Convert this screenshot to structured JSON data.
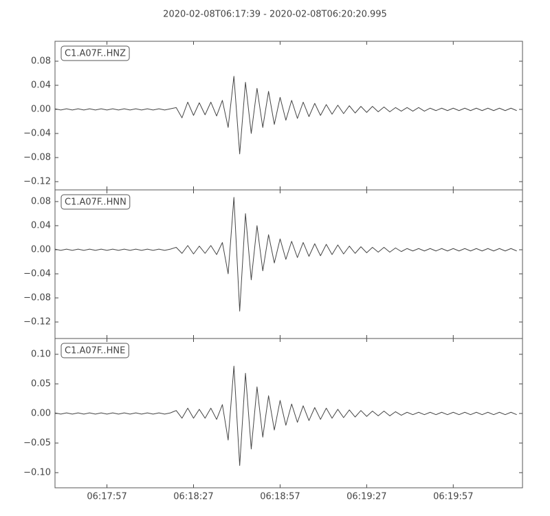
{
  "title": "2020-02-08T06:17:39  -  2020-02-08T06:20:20.995",
  "chart_data": [
    {
      "type": "line",
      "label": "C1.A07F..HNZ",
      "color": "#444444",
      "xlim": [
        0,
        161.995
      ],
      "xticks": [
        {
          "value": 18,
          "label": "06:17:57"
        },
        {
          "value": 48,
          "label": "06:18:27"
        },
        {
          "value": 78,
          "label": "06:18:57"
        },
        {
          "value": 108,
          "label": "06:19:27"
        },
        {
          "value": 138,
          "label": "06:19:57"
        }
      ],
      "ylim": [
        -0.1337,
        0.1131
      ],
      "yticks": [
        {
          "value": -0.12,
          "label": "−0.12"
        },
        {
          "value": -0.08,
          "label": "−0.08"
        },
        {
          "value": -0.04,
          "label": "−0.04"
        },
        {
          "value": 0,
          "label": "0.00"
        },
        {
          "value": 0.04,
          "label": "0.04"
        },
        {
          "value": 0.08,
          "label": "0.08"
        }
      ],
      "x": [
        0,
        2,
        4,
        6,
        8,
        10,
        12,
        14,
        16,
        18,
        20,
        22,
        24,
        26,
        28,
        30,
        32,
        34,
        36,
        38,
        40,
        42,
        44,
        46,
        48,
        50,
        52,
        54,
        56,
        58,
        60,
        62,
        64,
        66,
        68,
        70,
        72,
        74,
        76,
        78,
        80,
        82,
        84,
        86,
        88,
        90,
        92,
        94,
        96,
        98,
        100,
        102,
        104,
        106,
        108,
        110,
        112,
        114,
        116,
        118,
        120,
        122,
        124,
        126,
        128,
        130,
        132,
        134,
        136,
        138,
        140,
        142,
        144,
        146,
        148,
        150,
        152,
        154,
        156,
        158,
        160
      ],
      "values": [
        0.001,
        -0.001,
        0.001,
        -0.001,
        0.001,
        -0.001,
        0.001,
        -0.001,
        0.001,
        -0.001,
        0.001,
        -0.001,
        0.001,
        -0.001,
        0.001,
        -0.001,
        0.001,
        -0.001,
        0.001,
        -0.001,
        0.001,
        0.003,
        -0.014,
        0.012,
        -0.01,
        0.011,
        -0.009,
        0.012,
        -0.011,
        0.015,
        -0.03,
        0.055,
        -0.074,
        0.045,
        -0.04,
        0.035,
        -0.03,
        0.03,
        -0.025,
        0.02,
        -0.018,
        0.015,
        -0.015,
        0.012,
        -0.012,
        0.01,
        -0.01,
        0.008,
        -0.008,
        0.007,
        -0.007,
        0.006,
        -0.006,
        0.005,
        -0.005,
        0.005,
        -0.004,
        0.004,
        -0.004,
        0.003,
        -0.003,
        0.003,
        -0.003,
        0.003,
        -0.003,
        0.002,
        -0.002,
        0.002,
        -0.002,
        0.002,
        -0.002,
        0.002,
        -0.002,
        0.002,
        -0.002,
        0.002,
        -0.002,
        0.002,
        -0.002,
        0.002,
        -0.002
      ]
    },
    {
      "type": "line",
      "label": "C1.A07F..HNN",
      "color": "#444444",
      "xlim": [
        0,
        161.995
      ],
      "xticks": [
        {
          "value": 18,
          "label": "06:17:57"
        },
        {
          "value": 48,
          "label": "06:18:27"
        },
        {
          "value": 78,
          "label": "06:18:57"
        },
        {
          "value": 108,
          "label": "06:19:27"
        },
        {
          "value": 138,
          "label": "06:19:57"
        }
      ],
      "ylim": [
        -0.1474,
        0.0994
      ],
      "yticks": [
        {
          "value": -0.12,
          "label": "−0.12"
        },
        {
          "value": -0.08,
          "label": "−0.08"
        },
        {
          "value": -0.04,
          "label": "−0.04"
        },
        {
          "value": 0,
          "label": "0.00"
        },
        {
          "value": 0.04,
          "label": "0.04"
        },
        {
          "value": 0.08,
          "label": "0.08"
        }
      ],
      "x": [
        0,
        2,
        4,
        6,
        8,
        10,
        12,
        14,
        16,
        18,
        20,
        22,
        24,
        26,
        28,
        30,
        32,
        34,
        36,
        38,
        40,
        42,
        44,
        46,
        48,
        50,
        52,
        54,
        56,
        58,
        60,
        62,
        64,
        66,
        68,
        70,
        72,
        74,
        76,
        78,
        80,
        82,
        84,
        86,
        88,
        90,
        92,
        94,
        96,
        98,
        100,
        102,
        104,
        106,
        108,
        110,
        112,
        114,
        116,
        118,
        120,
        122,
        124,
        126,
        128,
        130,
        132,
        134,
        136,
        138,
        140,
        142,
        144,
        146,
        148,
        150,
        152,
        154,
        156,
        158,
        160
      ],
      "values": [
        0.001,
        -0.001,
        0.001,
        -0.001,
        0.001,
        -0.001,
        0.001,
        -0.001,
        0.001,
        -0.001,
        0.001,
        -0.001,
        0.001,
        -0.001,
        0.001,
        -0.001,
        0.001,
        -0.001,
        0.001,
        -0.001,
        0.001,
        0.004,
        -0.006,
        0.007,
        -0.007,
        0.006,
        -0.006,
        0.007,
        -0.008,
        0.012,
        -0.04,
        0.087,
        -0.102,
        0.06,
        -0.05,
        0.04,
        -0.035,
        0.025,
        -0.022,
        0.018,
        -0.016,
        0.014,
        -0.013,
        0.012,
        -0.011,
        0.01,
        -0.01,
        0.009,
        -0.008,
        0.008,
        -0.007,
        0.006,
        -0.006,
        0.005,
        -0.005,
        0.004,
        -0.004,
        0.004,
        -0.004,
        0.003,
        -0.003,
        0.002,
        -0.002,
        0.002,
        -0.002,
        0.002,
        -0.002,
        0.002,
        -0.002,
        0.002,
        -0.002,
        0.002,
        -0.002,
        0.002,
        -0.002,
        0.002,
        -0.002,
        0.002,
        -0.002,
        0.002,
        -0.002
      ]
    },
    {
      "type": "line",
      "label": "C1.A07F..HNE",
      "color": "#444444",
      "xlim": [
        0,
        161.995
      ],
      "xticks": [
        {
          "value": 18,
          "label": "06:17:57"
        },
        {
          "value": 48,
          "label": "06:18:27"
        },
        {
          "value": 78,
          "label": "06:18:57"
        },
        {
          "value": 108,
          "label": "06:19:27"
        },
        {
          "value": 138,
          "label": "06:19:57"
        }
      ],
      "ylim": [
        -0.1256,
        0.1267
      ],
      "yticks": [
        {
          "value": -0.1,
          "label": "−0.10"
        },
        {
          "value": -0.05,
          "label": "−0.05"
        },
        {
          "value": 0,
          "label": "0.00"
        },
        {
          "value": 0.05,
          "label": "0.05"
        },
        {
          "value": 0.1,
          "label": "0.10"
        }
      ],
      "x": [
        0,
        2,
        4,
        6,
        8,
        10,
        12,
        14,
        16,
        18,
        20,
        22,
        24,
        26,
        28,
        30,
        32,
        34,
        36,
        38,
        40,
        42,
        44,
        46,
        48,
        50,
        52,
        54,
        56,
        58,
        60,
        62,
        64,
        66,
        68,
        70,
        72,
        74,
        76,
        78,
        80,
        82,
        84,
        86,
        88,
        90,
        92,
        94,
        96,
        98,
        100,
        102,
        104,
        106,
        108,
        110,
        112,
        114,
        116,
        118,
        120,
        122,
        124,
        126,
        128,
        130,
        132,
        134,
        136,
        138,
        140,
        142,
        144,
        146,
        148,
        150,
        152,
        154,
        156,
        158,
        160
      ],
      "values": [
        0.001,
        -0.001,
        0.001,
        -0.001,
        0.001,
        -0.001,
        0.001,
        -0.001,
        0.001,
        -0.001,
        0.001,
        -0.001,
        0.001,
        -0.001,
        0.001,
        -0.001,
        0.001,
        -0.001,
        0.001,
        -0.001,
        0.001,
        0.005,
        -0.008,
        0.009,
        -0.008,
        0.007,
        -0.008,
        0.009,
        -0.01,
        0.015,
        -0.045,
        0.08,
        -0.088,
        0.068,
        -0.06,
        0.045,
        -0.04,
        0.03,
        -0.028,
        0.022,
        -0.02,
        0.016,
        -0.015,
        0.013,
        -0.012,
        0.01,
        -0.01,
        0.009,
        -0.008,
        0.007,
        -0.007,
        0.006,
        -0.006,
        0.005,
        -0.005,
        0.004,
        -0.004,
        0.004,
        -0.004,
        0.003,
        -0.003,
        0.002,
        -0.002,
        0.002,
        -0.002,
        0.002,
        -0.002,
        0.002,
        -0.002,
        0.002,
        -0.002,
        0.002,
        -0.002,
        0.002,
        -0.002,
        0.002,
        -0.002,
        0.002,
        -0.002,
        0.002,
        -0.002
      ]
    }
  ]
}
